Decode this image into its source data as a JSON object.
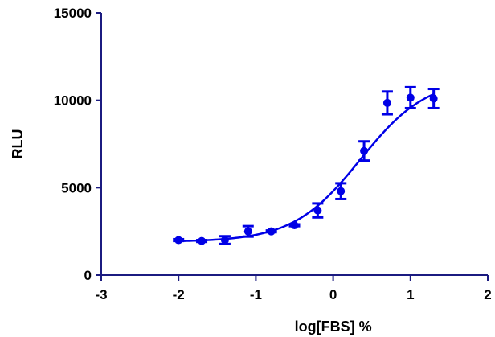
{
  "chart_data": {
    "type": "scatter",
    "title": "",
    "xlabel": "log[FBS] %",
    "ylabel": "RLU",
    "xlim": [
      -3,
      2
    ],
    "ylim": [
      0,
      15000
    ],
    "x_ticks": [
      -3,
      -2,
      -1,
      0,
      1,
      2
    ],
    "y_ticks": [
      0,
      5000,
      10000,
      15000
    ],
    "x_tick_labels": [
      "-3",
      "-2",
      "-1",
      "0",
      "1",
      "2"
    ],
    "y_tick_labels": [
      "0",
      "5000",
      "10000",
      "15000"
    ],
    "grid": false,
    "legend": "none",
    "color": "#0000e6",
    "axis_color": "#1b1b80",
    "series": [
      {
        "points": [
          {
            "x": -2.0,
            "y": 2000,
            "err": 50
          },
          {
            "x": -1.7,
            "y": 1950,
            "err": 50
          },
          {
            "x": -1.4,
            "y": 2000,
            "err": 220
          },
          {
            "x": -1.1,
            "y": 2500,
            "err": 300
          },
          {
            "x": -0.8,
            "y": 2500,
            "err": 50
          },
          {
            "x": -0.5,
            "y": 2850,
            "err": 50
          },
          {
            "x": -0.2,
            "y": 3700,
            "err": 400
          },
          {
            "x": 0.1,
            "y": 4800,
            "err": 450
          },
          {
            "x": 0.4,
            "y": 7100,
            "err": 550
          },
          {
            "x": 0.7,
            "y": 9850,
            "err": 650
          },
          {
            "x": 1.0,
            "y": 10150,
            "err": 600
          },
          {
            "x": 1.3,
            "y": 10100,
            "err": 550
          }
        ],
        "fit": {
          "model": "four-parameter logistic",
          "bottom": 1900,
          "top": 11300,
          "logEC50": 0.35,
          "hill": 1.0,
          "x_range": [
            -2.0,
            1.3
          ]
        }
      }
    ]
  }
}
